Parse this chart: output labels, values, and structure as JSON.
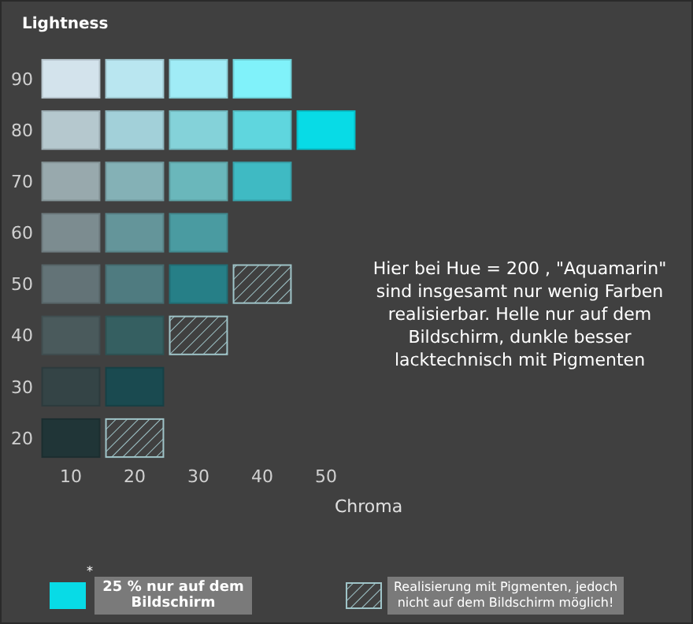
{
  "chart_data": {
    "type": "scatter",
    "xlabel": "Chroma",
    "ylabel": "Lightness",
    "marker": "square",
    "legend": "bottom",
    "grid": false,
    "xlim": [
      10,
      50
    ],
    "xticks": [
      10,
      20,
      30,
      40,
      50
    ],
    "ylim": [
      20,
      90
    ],
    "yticks": [
      20,
      30,
      40,
      50,
      60,
      70,
      80,
      90
    ],
    "annotations": [
      "Hier bei Hue = 200 , \"Aquamarin\" sind insgesamt nur wenig Farben realisierbar. Helle nur auf dem Bildschirm, dunkle besser lacktechnisch mit Pigmenten",
      "*"
    ],
    "series": [
      {
        "x": [
          10,
          20,
          30,
          40,
          10,
          20,
          30,
          40,
          10,
          20,
          30,
          40,
          10,
          20,
          30,
          10,
          20,
          30,
          10,
          20,
          10,
          20,
          10
        ],
        "values": [
          90,
          90,
          90,
          90,
          80,
          80,
          80,
          80,
          70,
          70,
          70,
          70,
          60,
          60,
          60,
          50,
          50,
          50,
          40,
          40,
          30,
          30,
          20
        ],
        "colors": [
          "#d3e3ec",
          "#b9e6f0",
          "#a0ecf6",
          "#80f2fa",
          "#b5c8ce",
          "#a2d0d9",
          "#84d2d9",
          "#5fd6de",
          "#98a9ad",
          "#84b1b6",
          "#6ab7bb",
          "#3fbac3",
          "#7c8c90",
          "#64959a",
          "#4a9ba1",
          "#637377",
          "#4f7b80",
          "#267f87",
          "#4a5a5c",
          "#355f61",
          "#344446",
          "#1a4a50",
          "#203537"
        ]
      },
      {
        "name": "25 % nur auf dem Bildschirm",
        "color": "#08dbe6",
        "x": [
          50
        ],
        "values": [
          80
        ]
      },
      {
        "name": "Realisierung mit Pigmenten, jedoch nicht  auf dem Bildschirm möglich!",
        "color": "#9fc4c8",
        "x": [
          40,
          30,
          20
        ],
        "values": [
          50,
          40,
          20
        ]
      }
    ]
  }
}
